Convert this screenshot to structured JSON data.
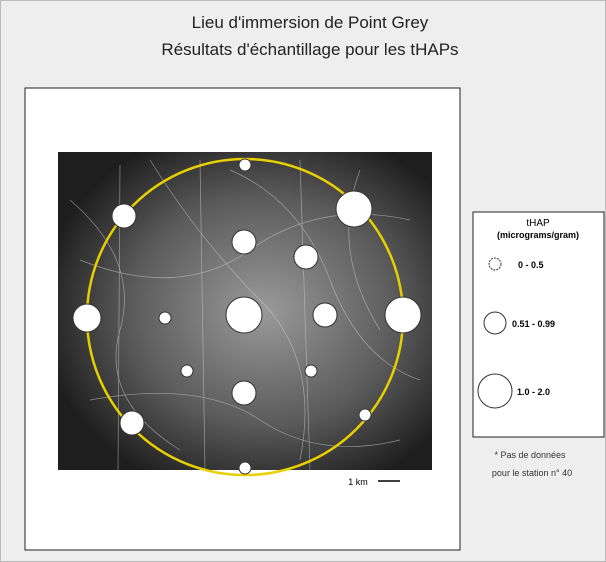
{
  "header": {
    "title": "Lieu d'immersion de Point Grey",
    "subtitle": "Résultats d'échantillage pour les tHAPs"
  },
  "map": {
    "scale_label": "1 km"
  },
  "legend": {
    "title": "tHAP",
    "unit": "(micrograms/gram)",
    "items": [
      "0 - 0.5",
      "0.51 - 0.99",
      "1.0 - 2.0"
    ]
  },
  "note": {
    "lines": [
      "* Pas de données",
      "pour le station n° 40"
    ]
  }
}
